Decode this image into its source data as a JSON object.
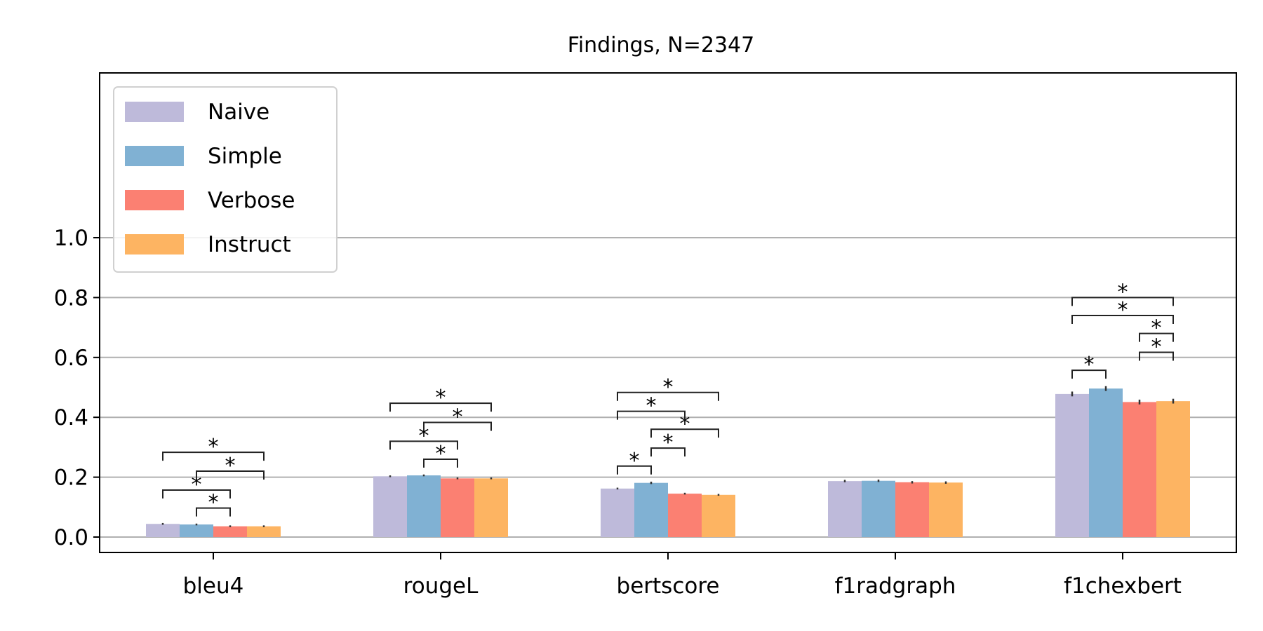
{
  "chart_data": {
    "type": "bar",
    "title": "Findings, N=2347",
    "xlabel": "",
    "ylabel": "",
    "ylim": [
      -0.05,
      1.55
    ],
    "yticks": [
      "0.0",
      "0.2",
      "0.4",
      "0.6",
      "0.8",
      "1.0"
    ],
    "grid": true,
    "legend_position": "upper-left",
    "categories": [
      "bleu4",
      "rougeL",
      "bertscore",
      "f1radgraph",
      "f1chexbert"
    ],
    "series": [
      {
        "name": "Naive",
        "color": "#bebada",
        "values": [
          0.044,
          0.203,
          0.162,
          0.187,
          0.478
        ],
        "errors": [
          0.003,
          0.003,
          0.003,
          0.004,
          0.008
        ]
      },
      {
        "name": "Simple",
        "color": "#80b1d3",
        "values": [
          0.042,
          0.206,
          0.181,
          0.188,
          0.496
        ],
        "errors": [
          0.003,
          0.003,
          0.004,
          0.004,
          0.008
        ]
      },
      {
        "name": "Verbose",
        "color": "#fb8072",
        "values": [
          0.036,
          0.196,
          0.145,
          0.183,
          0.451
        ],
        "errors": [
          0.003,
          0.003,
          0.003,
          0.004,
          0.008
        ]
      },
      {
        "name": "Instruct",
        "color": "#fdb462",
        "values": [
          0.036,
          0.196,
          0.141,
          0.182,
          0.454
        ],
        "errors": [
          0.003,
          0.003,
          0.003,
          0.004,
          0.008
        ]
      }
    ],
    "significance": [
      {
        "category": 0,
        "from": 1,
        "to": 2,
        "y": 0.097,
        "label": "*"
      },
      {
        "category": 0,
        "from": 0,
        "to": 2,
        "y": 0.157,
        "label": "*"
      },
      {
        "category": 0,
        "from": 1,
        "to": 3,
        "y": 0.22,
        "label": "*"
      },
      {
        "category": 0,
        "from": 0,
        "to": 3,
        "y": 0.283,
        "label": "*"
      },
      {
        "category": 1,
        "from": 1,
        "to": 2,
        "y": 0.26,
        "label": "*"
      },
      {
        "category": 1,
        "from": 0,
        "to": 2,
        "y": 0.32,
        "label": "*"
      },
      {
        "category": 1,
        "from": 1,
        "to": 3,
        "y": 0.383,
        "label": "*"
      },
      {
        "category": 1,
        "from": 0,
        "to": 3,
        "y": 0.447,
        "label": "*"
      },
      {
        "category": 2,
        "from": 0,
        "to": 1,
        "y": 0.237,
        "label": "*"
      },
      {
        "category": 2,
        "from": 1,
        "to": 2,
        "y": 0.297,
        "label": "*"
      },
      {
        "category": 2,
        "from": 1,
        "to": 3,
        "y": 0.36,
        "label": "*"
      },
      {
        "category": 2,
        "from": 0,
        "to": 2,
        "y": 0.42,
        "label": "*"
      },
      {
        "category": 2,
        "from": 0,
        "to": 3,
        "y": 0.483,
        "label": "*"
      },
      {
        "category": 4,
        "from": 0,
        "to": 1,
        "y": 0.557,
        "label": "*"
      },
      {
        "category": 4,
        "from": 2,
        "to": 3,
        "y": 0.617,
        "label": "*"
      },
      {
        "category": 4,
        "from": 2,
        "to": 4,
        "y": 0.68,
        "label": "*"
      },
      {
        "category": 4,
        "from": 0,
        "to": 3,
        "y": 0.74,
        "label": "*"
      },
      {
        "category": 4,
        "from": 0,
        "to": 4,
        "y": 0.8,
        "label": "*"
      }
    ]
  }
}
